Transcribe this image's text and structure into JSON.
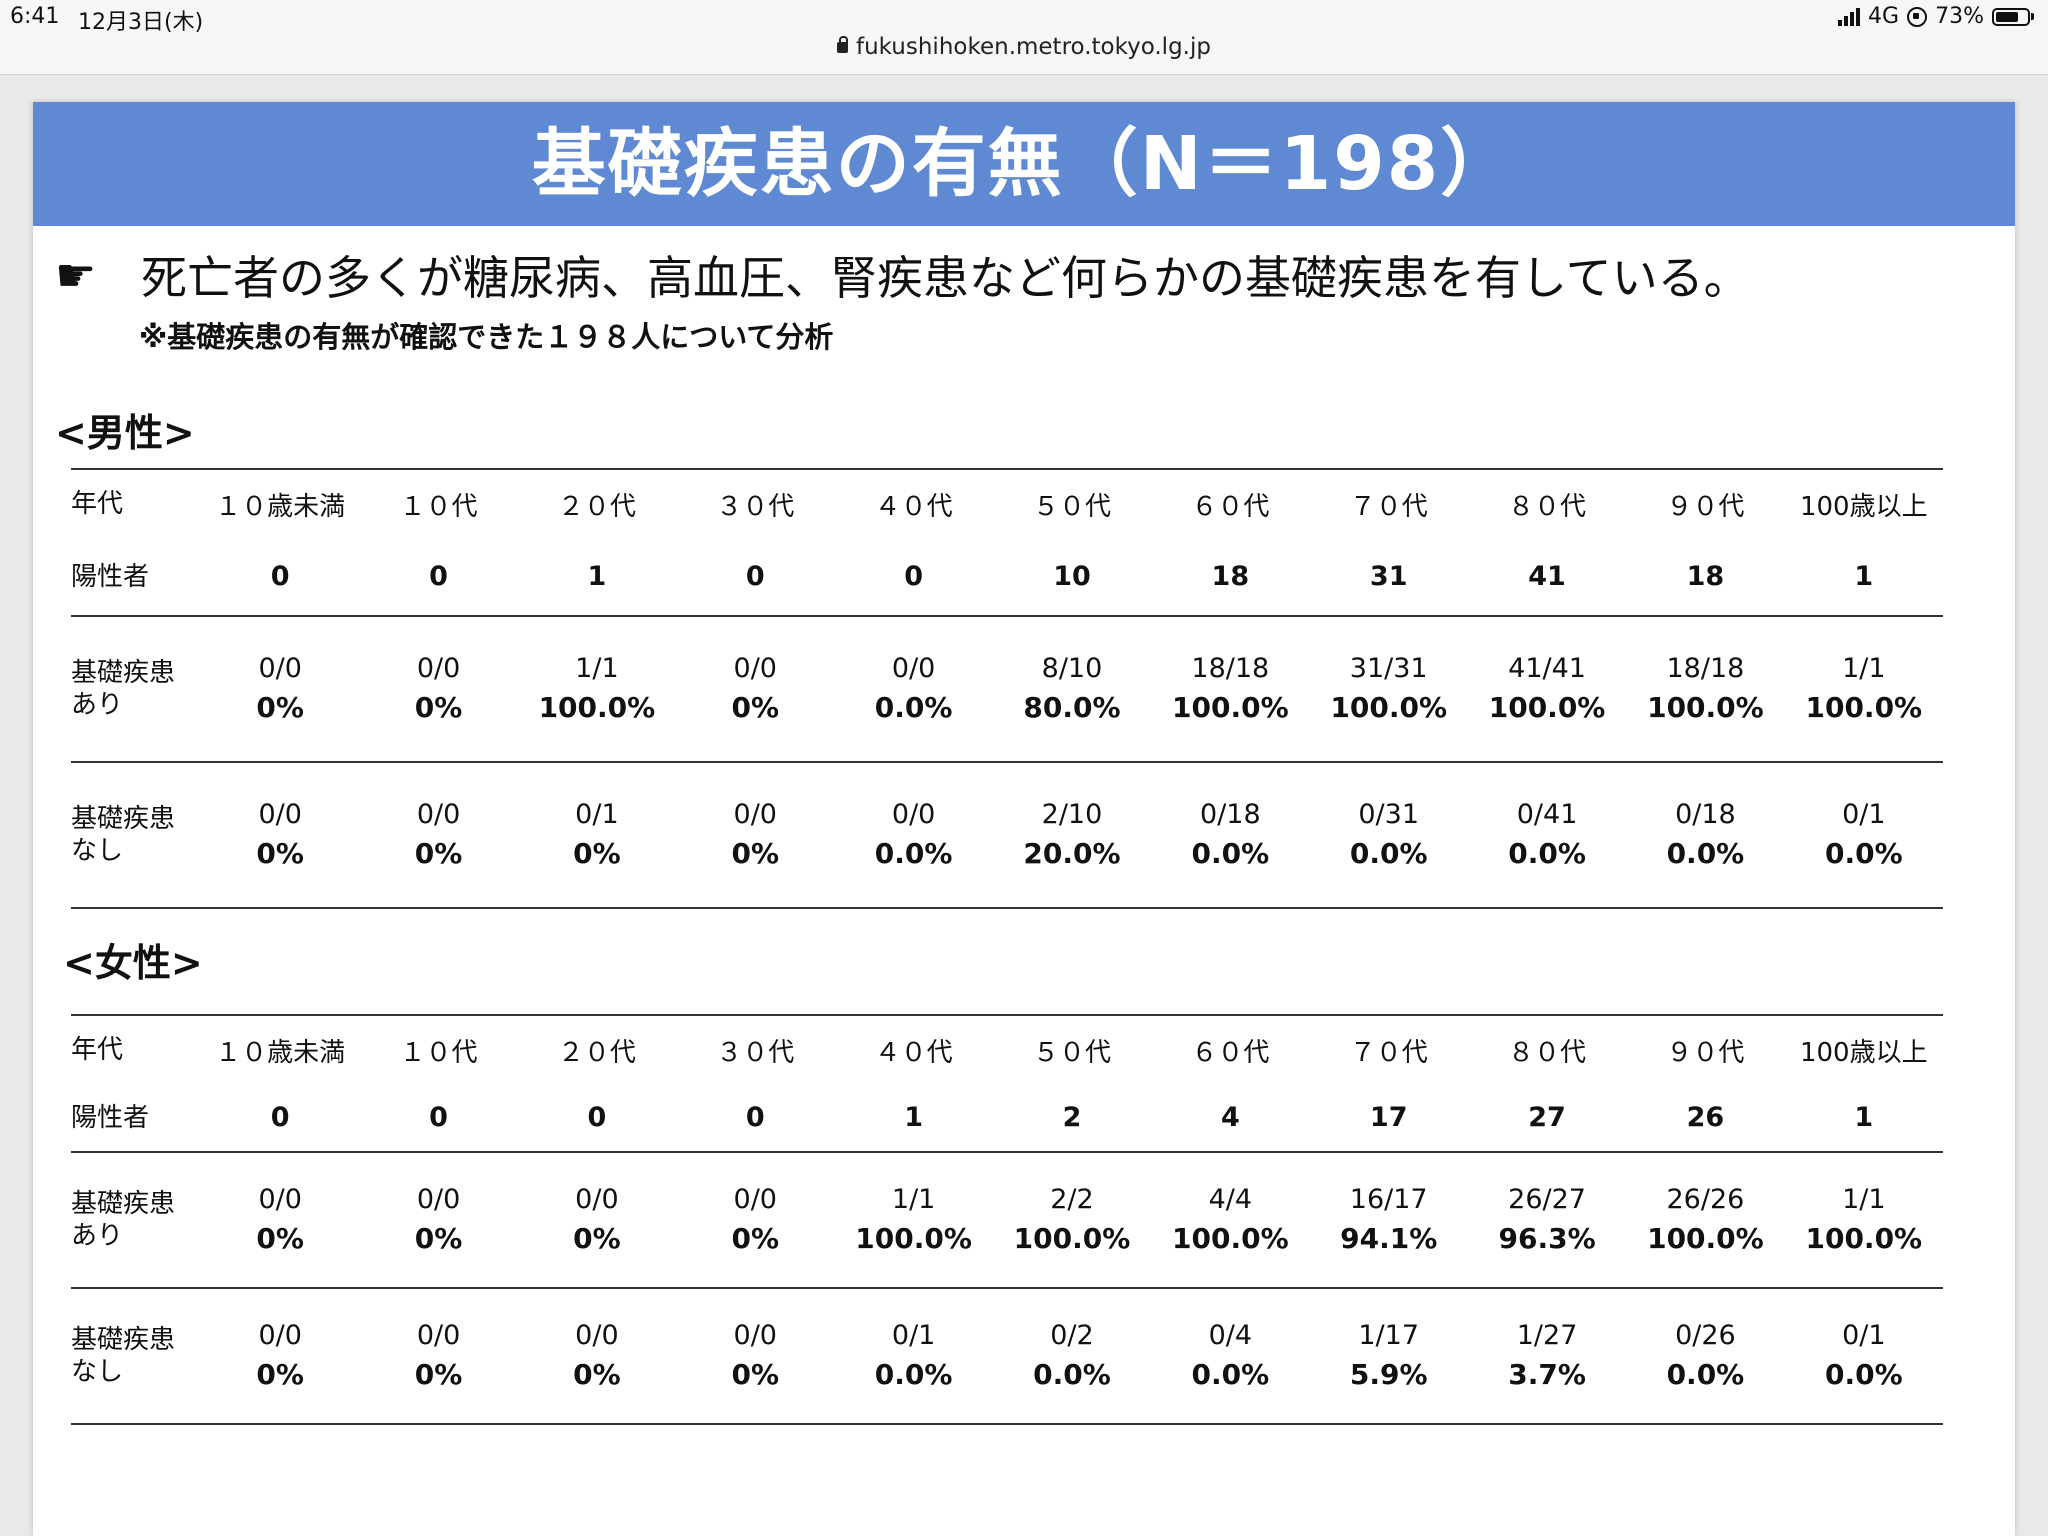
{
  "status_bar": {
    "time": "6:41",
    "date": "12月3日(木)",
    "network": "4G",
    "battery": "73%",
    "battery_level": 0.73
  },
  "browser": {
    "url": "fukushihoken.metro.tokyo.lg.jp"
  },
  "slide": {
    "title": "基礎疾患の有無（N＝198）",
    "lead": "死亡者の多くが糖尿病、高血圧、腎疾患など何らかの基礎疾患を有している。",
    "note": "※基礎疾患の有無が確認できた１９８人について分析",
    "row_labels": {
      "age": "年代",
      "positive": "陽性者",
      "with_line1": "基礎疾患",
      "with_line2": "あり",
      "without_line1": "基礎疾患",
      "without_line2": "なし"
    },
    "ages": [
      "１０歳未満",
      "１０代",
      "２０代",
      "３０代",
      "４０代",
      "５０代",
      "６０代",
      "７０代",
      "８０代",
      "９０代",
      "100歳以上"
    ],
    "male": {
      "title": "<男性>",
      "positive": [
        "0",
        "0",
        "1",
        "0",
        "0",
        "10",
        "18",
        "31",
        "41",
        "18",
        "1"
      ],
      "with_frac": [
        "0/0",
        "0/0",
        "1/1",
        "0/0",
        "0/0",
        "8/10",
        "18/18",
        "31/31",
        "41/41",
        "18/18",
        "1/1"
      ],
      "with_pct": [
        "0%",
        "0%",
        "100.0%",
        "0%",
        "0.0%",
        "80.0%",
        "100.0%",
        "100.0%",
        "100.0%",
        "100.0%",
        "100.0%"
      ],
      "without_frac": [
        "0/0",
        "0/0",
        "0/1",
        "0/0",
        "0/0",
        "2/10",
        "0/18",
        "0/31",
        "0/41",
        "0/18",
        "0/1"
      ],
      "without_pct": [
        "0%",
        "0%",
        "0%",
        "0%",
        "0.0%",
        "20.0%",
        "0.0%",
        "0.0%",
        "0.0%",
        "0.0%",
        "0.0%"
      ]
    },
    "female": {
      "title": "<女性>",
      "positive": [
        "0",
        "0",
        "0",
        "0",
        "1",
        "2",
        "4",
        "17",
        "27",
        "26",
        "1"
      ],
      "with_frac": [
        "0/0",
        "0/0",
        "0/0",
        "0/0",
        "1/1",
        "2/2",
        "4/4",
        "16/17",
        "26/27",
        "26/26",
        "1/1"
      ],
      "with_pct": [
        "0%",
        "0%",
        "0%",
        "0%",
        "100.0%",
        "100.0%",
        "100.0%",
        "94.1%",
        "96.3%",
        "100.0%",
        "100.0%"
      ],
      "without_frac": [
        "0/0",
        "0/0",
        "0/0",
        "0/0",
        "0/1",
        "0/2",
        "0/4",
        "1/17",
        "1/27",
        "0/26",
        "0/1"
      ],
      "without_pct": [
        "0%",
        "0%",
        "0%",
        "0%",
        "0.0%",
        "0.0%",
        "0.0%",
        "5.9%",
        "3.7%",
        "0.0%",
        "0.0%"
      ]
    }
  }
}
